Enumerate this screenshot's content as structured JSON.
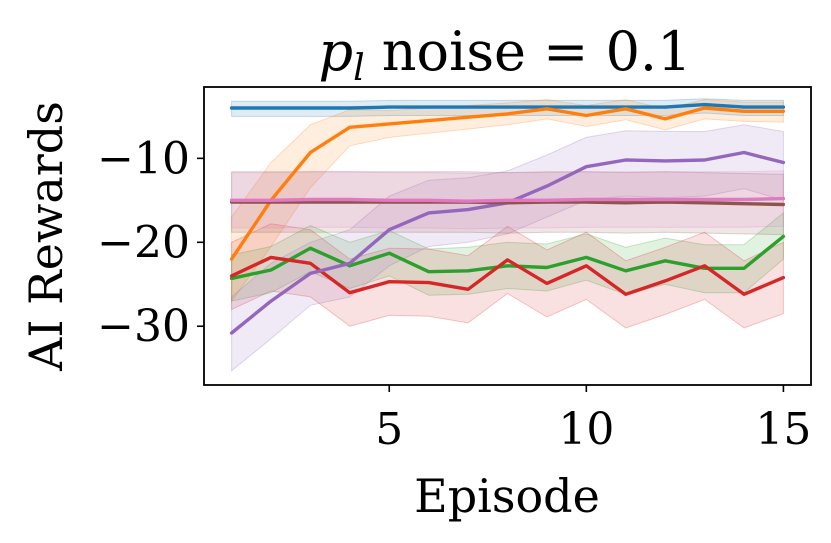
{
  "chart_data": {
    "type": "line",
    "title_prefix": "p",
    "title_subscript": "l",
    "title_suffix": " noise = 0.1",
    "xlabel": "Episode",
    "ylabel": "AI Rewards",
    "xlim": [
      0.3,
      15.7
    ],
    "ylim": [
      -37,
      -1.5
    ],
    "xticks": [
      5,
      10,
      15
    ],
    "yticks": [
      -10,
      -20,
      -30
    ],
    "ytick_labels": [
      "−10",
      "−20",
      "−30"
    ],
    "grid": false,
    "x": [
      1,
      2,
      3,
      4,
      5,
      6,
      7,
      8,
      9,
      10,
      11,
      12,
      13,
      14,
      15
    ],
    "series": [
      {
        "color": "#1f77b4",
        "values": [
          -4.0,
          -4.0,
          -4.0,
          -4.0,
          -3.9,
          -3.9,
          -3.9,
          -3.9,
          -3.9,
          -3.9,
          -3.9,
          -3.9,
          -3.6,
          -3.9,
          -3.9
        ],
        "lower": [
          -5.0,
          -5.0,
          -5.0,
          -5.0,
          -4.9,
          -4.9,
          -4.9,
          -4.9,
          -4.9,
          -4.9,
          -4.9,
          -4.9,
          -4.6,
          -4.9,
          -4.9
        ],
        "upper": [
          -3.2,
          -3.2,
          -3.2,
          -3.2,
          -3.1,
          -3.1,
          -3.1,
          -3.1,
          -3.1,
          -3.1,
          -3.1,
          -3.1,
          -2.9,
          -3.1,
          -3.1
        ]
      },
      {
        "color": "#ff7f0e",
        "values": [
          -22.0,
          -15.0,
          -9.3,
          -6.3,
          -5.9,
          -5.5,
          -5.1,
          -4.7,
          -4.1,
          -4.9,
          -4.1,
          -5.3,
          -4.0,
          -4.4,
          -4.4
        ],
        "lower": [
          -27.0,
          -20.5,
          -13.5,
          -8.5,
          -7.5,
          -7.0,
          -6.5,
          -6.0,
          -5.3,
          -6.2,
          -5.4,
          -6.6,
          -5.3,
          -5.6,
          -5.7
        ],
        "upper": [
          -17.0,
          -10.5,
          -6.0,
          -4.2,
          -4.3,
          -4.0,
          -3.7,
          -3.4,
          -3.0,
          -3.7,
          -3.0,
          -4.1,
          -3.0,
          -3.3,
          -3.3
        ]
      },
      {
        "color": "#2ca02c",
        "values": [
          -24.3,
          -23.3,
          -20.7,
          -22.8,
          -21.3,
          -23.5,
          -23.4,
          -22.8,
          -23.0,
          -21.8,
          -23.4,
          -22.2,
          -23.1,
          -23.1,
          -19.3
        ],
        "lower": [
          -27.0,
          -26.0,
          -23.5,
          -25.5,
          -24.0,
          -26.3,
          -26.2,
          -25.5,
          -25.8,
          -24.5,
          -26.2,
          -25.0,
          -26.0,
          -26.0,
          -22.0
        ],
        "upper": [
          -21.5,
          -20.5,
          -18.0,
          -20.0,
          -18.6,
          -20.8,
          -20.6,
          -20.0,
          -20.2,
          -19.0,
          -20.6,
          -19.5,
          -20.3,
          -20.3,
          -16.5
        ]
      },
      {
        "color": "#d62728",
        "values": [
          -24.0,
          -21.8,
          -22.5,
          -26.0,
          -24.7,
          -24.8,
          -25.6,
          -22.1,
          -24.9,
          -22.8,
          -26.2,
          -24.6,
          -22.8,
          -26.2,
          -24.2
        ],
        "lower": [
          -28.0,
          -25.8,
          -26.5,
          -30.0,
          -28.7,
          -28.8,
          -29.6,
          -26.1,
          -28.9,
          -26.8,
          -30.2,
          -28.6,
          -26.8,
          -30.2,
          -28.5
        ],
        "upper": [
          -20.0,
          -17.8,
          -18.5,
          -22.0,
          -20.7,
          -20.8,
          -21.6,
          -18.1,
          -20.9,
          -18.8,
          -22.2,
          -20.6,
          -18.8,
          -22.2,
          -20.0
        ]
      },
      {
        "color": "#9467bd",
        "values": [
          -30.8,
          -27.0,
          -23.7,
          -22.5,
          -18.5,
          -16.5,
          -16.1,
          -15.3,
          -13.3,
          -11.0,
          -10.2,
          -10.3,
          -10.2,
          -9.3,
          -10.5
        ],
        "lower": [
          -35.3,
          -31.5,
          -27.5,
          -26.5,
          -22.8,
          -20.5,
          -20.0,
          -19.0,
          -17.0,
          -15.0,
          -14.5,
          -14.7,
          -14.5,
          -13.6,
          -15.0
        ],
        "upper": [
          -26.5,
          -22.5,
          -20.0,
          -18.5,
          -14.5,
          -12.6,
          -12.3,
          -11.5,
          -9.6,
          -7.5,
          -6.7,
          -6.8,
          -6.8,
          -6.0,
          -6.8
        ]
      },
      {
        "color": "#8c564b",
        "values": [
          -15.2,
          -15.2,
          -15.2,
          -15.2,
          -15.2,
          -15.2,
          -15.2,
          -15.3,
          -15.2,
          -15.2,
          -15.3,
          -15.2,
          -15.3,
          -15.4,
          -15.5
        ],
        "lower": [
          -18.8,
          -18.8,
          -18.8,
          -18.8,
          -18.8,
          -18.8,
          -18.8,
          -18.9,
          -18.8,
          -18.8,
          -18.9,
          -18.8,
          -18.9,
          -19.0,
          -19.1
        ],
        "upper": [
          -11.6,
          -11.6,
          -11.6,
          -11.6,
          -11.6,
          -11.6,
          -11.6,
          -11.7,
          -11.6,
          -11.6,
          -11.7,
          -11.6,
          -11.7,
          -11.8,
          -11.9
        ]
      },
      {
        "color": "#e377c2",
        "values": [
          -15.0,
          -15.0,
          -14.9,
          -14.9,
          -15.0,
          -15.0,
          -15.1,
          -15.0,
          -15.0,
          -14.9,
          -14.9,
          -14.9,
          -14.9,
          -14.9,
          -14.8
        ],
        "lower": [
          -18.3,
          -18.3,
          -18.2,
          -18.2,
          -18.3,
          -18.3,
          -18.4,
          -18.3,
          -18.3,
          -18.2,
          -18.2,
          -18.2,
          -18.2,
          -18.2,
          -18.1
        ],
        "upper": [
          -11.7,
          -11.7,
          -11.6,
          -11.6,
          -11.7,
          -11.7,
          -11.8,
          -11.7,
          -11.7,
          -11.6,
          -11.6,
          -11.6,
          -11.6,
          -11.6,
          -11.5
        ]
      }
    ]
  }
}
